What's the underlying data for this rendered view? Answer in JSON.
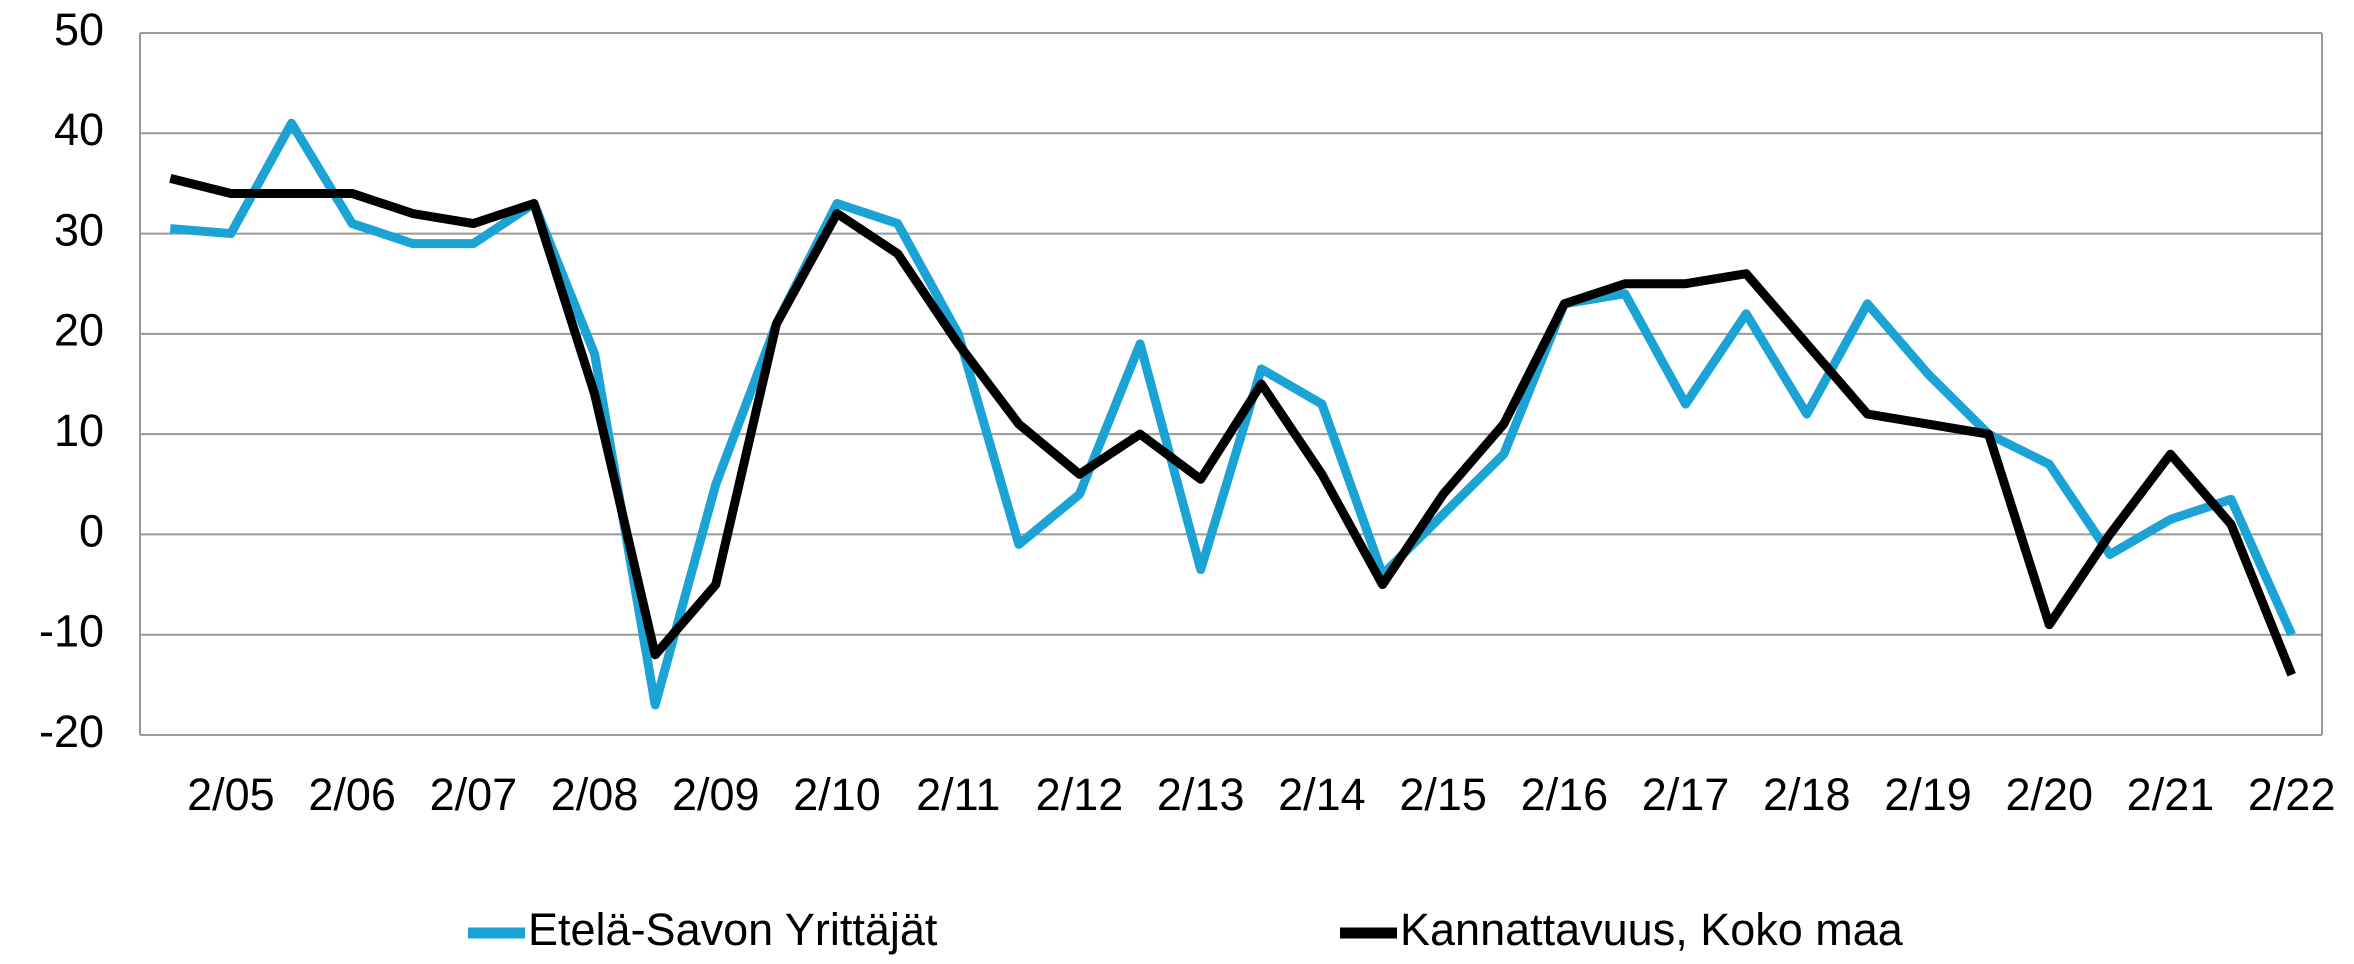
{
  "chart_data": {
    "type": "line",
    "categories": [
      null,
      "2/05",
      null,
      "2/06",
      null,
      "2/07",
      null,
      "2/08",
      null,
      "2/09",
      null,
      "2/10",
      null,
      "2/11",
      null,
      "2/12",
      null,
      "2/13",
      null,
      "2/14",
      null,
      "2/15",
      null,
      "2/16",
      null,
      "2/17",
      null,
      "2/18",
      null,
      "2/19",
      null,
      "2/20",
      null,
      "2/21",
      null,
      "2/22"
    ],
    "series": [
      {
        "name": "Etelä-Savon Yrittäjät",
        "color": "#1ba3d6",
        "values": [
          30.5,
          30,
          41,
          31,
          29,
          29,
          33,
          18,
          -17,
          5,
          21,
          33,
          31,
          20,
          -1,
          4,
          19,
          -3.5,
          16.5,
          13,
          -4,
          2,
          8,
          23,
          24,
          13,
          22,
          12,
          23,
          16,
          10,
          7,
          -2,
          1.5,
          3.5,
          -10
        ]
      },
      {
        "name": "Kannattavuus, Koko maa",
        "color": "#000000",
        "values": [
          35.5,
          34,
          34,
          34,
          32,
          31,
          33,
          14,
          -12,
          -5,
          21,
          32,
          28,
          19,
          11,
          6,
          10,
          5.5,
          15,
          6,
          -5,
          4,
          11,
          23,
          25,
          25,
          26,
          19,
          12,
          11,
          10,
          -9,
          0,
          8,
          1,
          -14
        ]
      }
    ],
    "ylim": [
      -20,
      50
    ],
    "yticks": [
      -20,
      -10,
      0,
      10,
      20,
      30,
      40,
      50
    ],
    "grid": true
  }
}
